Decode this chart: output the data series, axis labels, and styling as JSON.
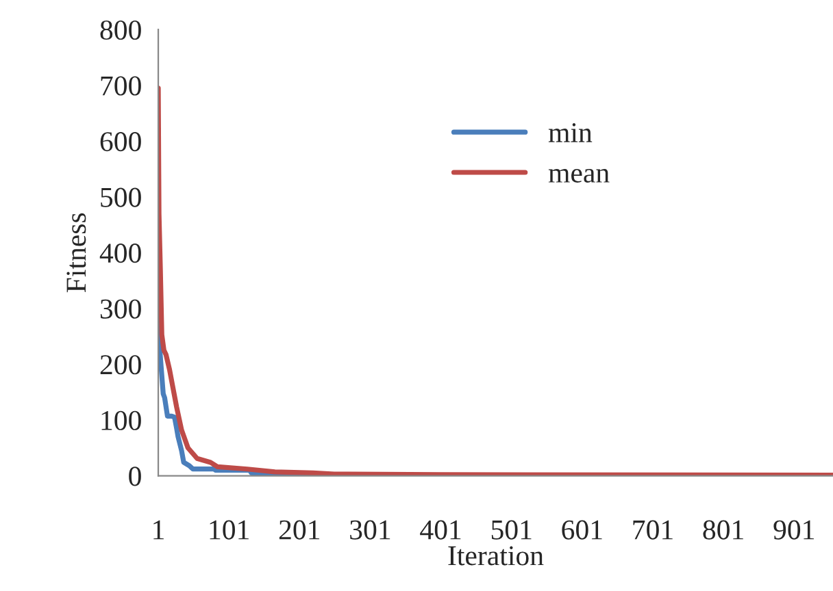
{
  "chart_data": {
    "type": "line",
    "xlabel": "Iteration",
    "ylabel": "Fitness",
    "xlim": [
      1,
      956
    ],
    "xticks": [
      1,
      101,
      201,
      301,
      401,
      501,
      601,
      701,
      801,
      901
    ],
    "ylim": [
      0,
      800
    ],
    "yticks": [
      0,
      100,
      200,
      300,
      400,
      500,
      600,
      700,
      800
    ],
    "grid": false,
    "legend": "top right",
    "marker": "none",
    "line_style": "solid",
    "series": [
      {
        "name": "min",
        "color": "#4a7ebb",
        "x": [
          1,
          2,
          3,
          5,
          8,
          10,
          14,
          20,
          24,
          27,
          29,
          34,
          37,
          45,
          50,
          80,
          82,
          130,
          133,
          200,
          250
        ],
        "values": [
          350,
          300,
          230,
          196,
          147,
          140,
          107,
          107,
          105,
          85,
          70,
          45,
          24,
          18,
          12,
          12,
          10,
          10,
          5,
          4,
          2
        ]
      },
      {
        "name": "mean",
        "color": "#be4b48",
        "x": [
          1,
          2,
          4,
          6,
          9,
          12,
          17,
          21,
          27,
          34,
          43,
          56,
          75,
          85,
          127,
          166,
          220,
          250,
          400,
          956
        ],
        "values": [
          695,
          470,
          368,
          253,
          225,
          217,
          190,
          163,
          123,
          82,
          50,
          31,
          24,
          16,
          12,
          7,
          5,
          3,
          2,
          1
        ]
      }
    ]
  }
}
